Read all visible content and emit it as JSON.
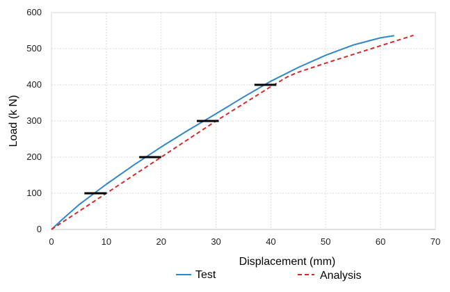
{
  "chart_data": {
    "type": "line",
    "title": "",
    "xlabel": "Displacement (mm)",
    "ylabel": "Load  (k N)",
    "xlim": [
      0,
      70
    ],
    "ylim": [
      0,
      600
    ],
    "xticks": [
      "0",
      "10",
      "20",
      "30",
      "40",
      "50",
      "60",
      "70"
    ],
    "yticks": [
      "0",
      "100",
      "200",
      "300",
      "400",
      "500",
      "600"
    ],
    "grid": true,
    "legend_position": "bottom",
    "series": [
      {
        "name": "Test",
        "color": "#2f86c8",
        "style": "solid",
        "x": [
          0,
          2,
          5,
          10,
          15,
          20,
          25,
          30,
          35,
          40,
          45,
          50,
          55,
          60,
          62.5
        ],
        "y": [
          0,
          28,
          68,
          125,
          178,
          228,
          275,
          320,
          366,
          410,
          448,
          482,
          510,
          530,
          536
        ]
      },
      {
        "name": "Analysis",
        "color": "#d62a2a",
        "style": "dashed",
        "x": [
          0,
          10,
          20,
          30,
          40,
          43,
          45,
          50,
          55,
          60,
          66
        ],
        "y": [
          0,
          100,
          200,
          300,
          395,
          422,
          435,
          460,
          484,
          508,
          537
        ]
      }
    ],
    "markers": [
      {
        "y": 100,
        "x_from": 6,
        "x_to": 10
      },
      {
        "y": 200,
        "x_from": 16,
        "x_to": 20
      },
      {
        "y": 300,
        "x_from": 26.5,
        "x_to": 30.5
      },
      {
        "y": 400,
        "x_from": 37,
        "x_to": 41
      }
    ]
  }
}
